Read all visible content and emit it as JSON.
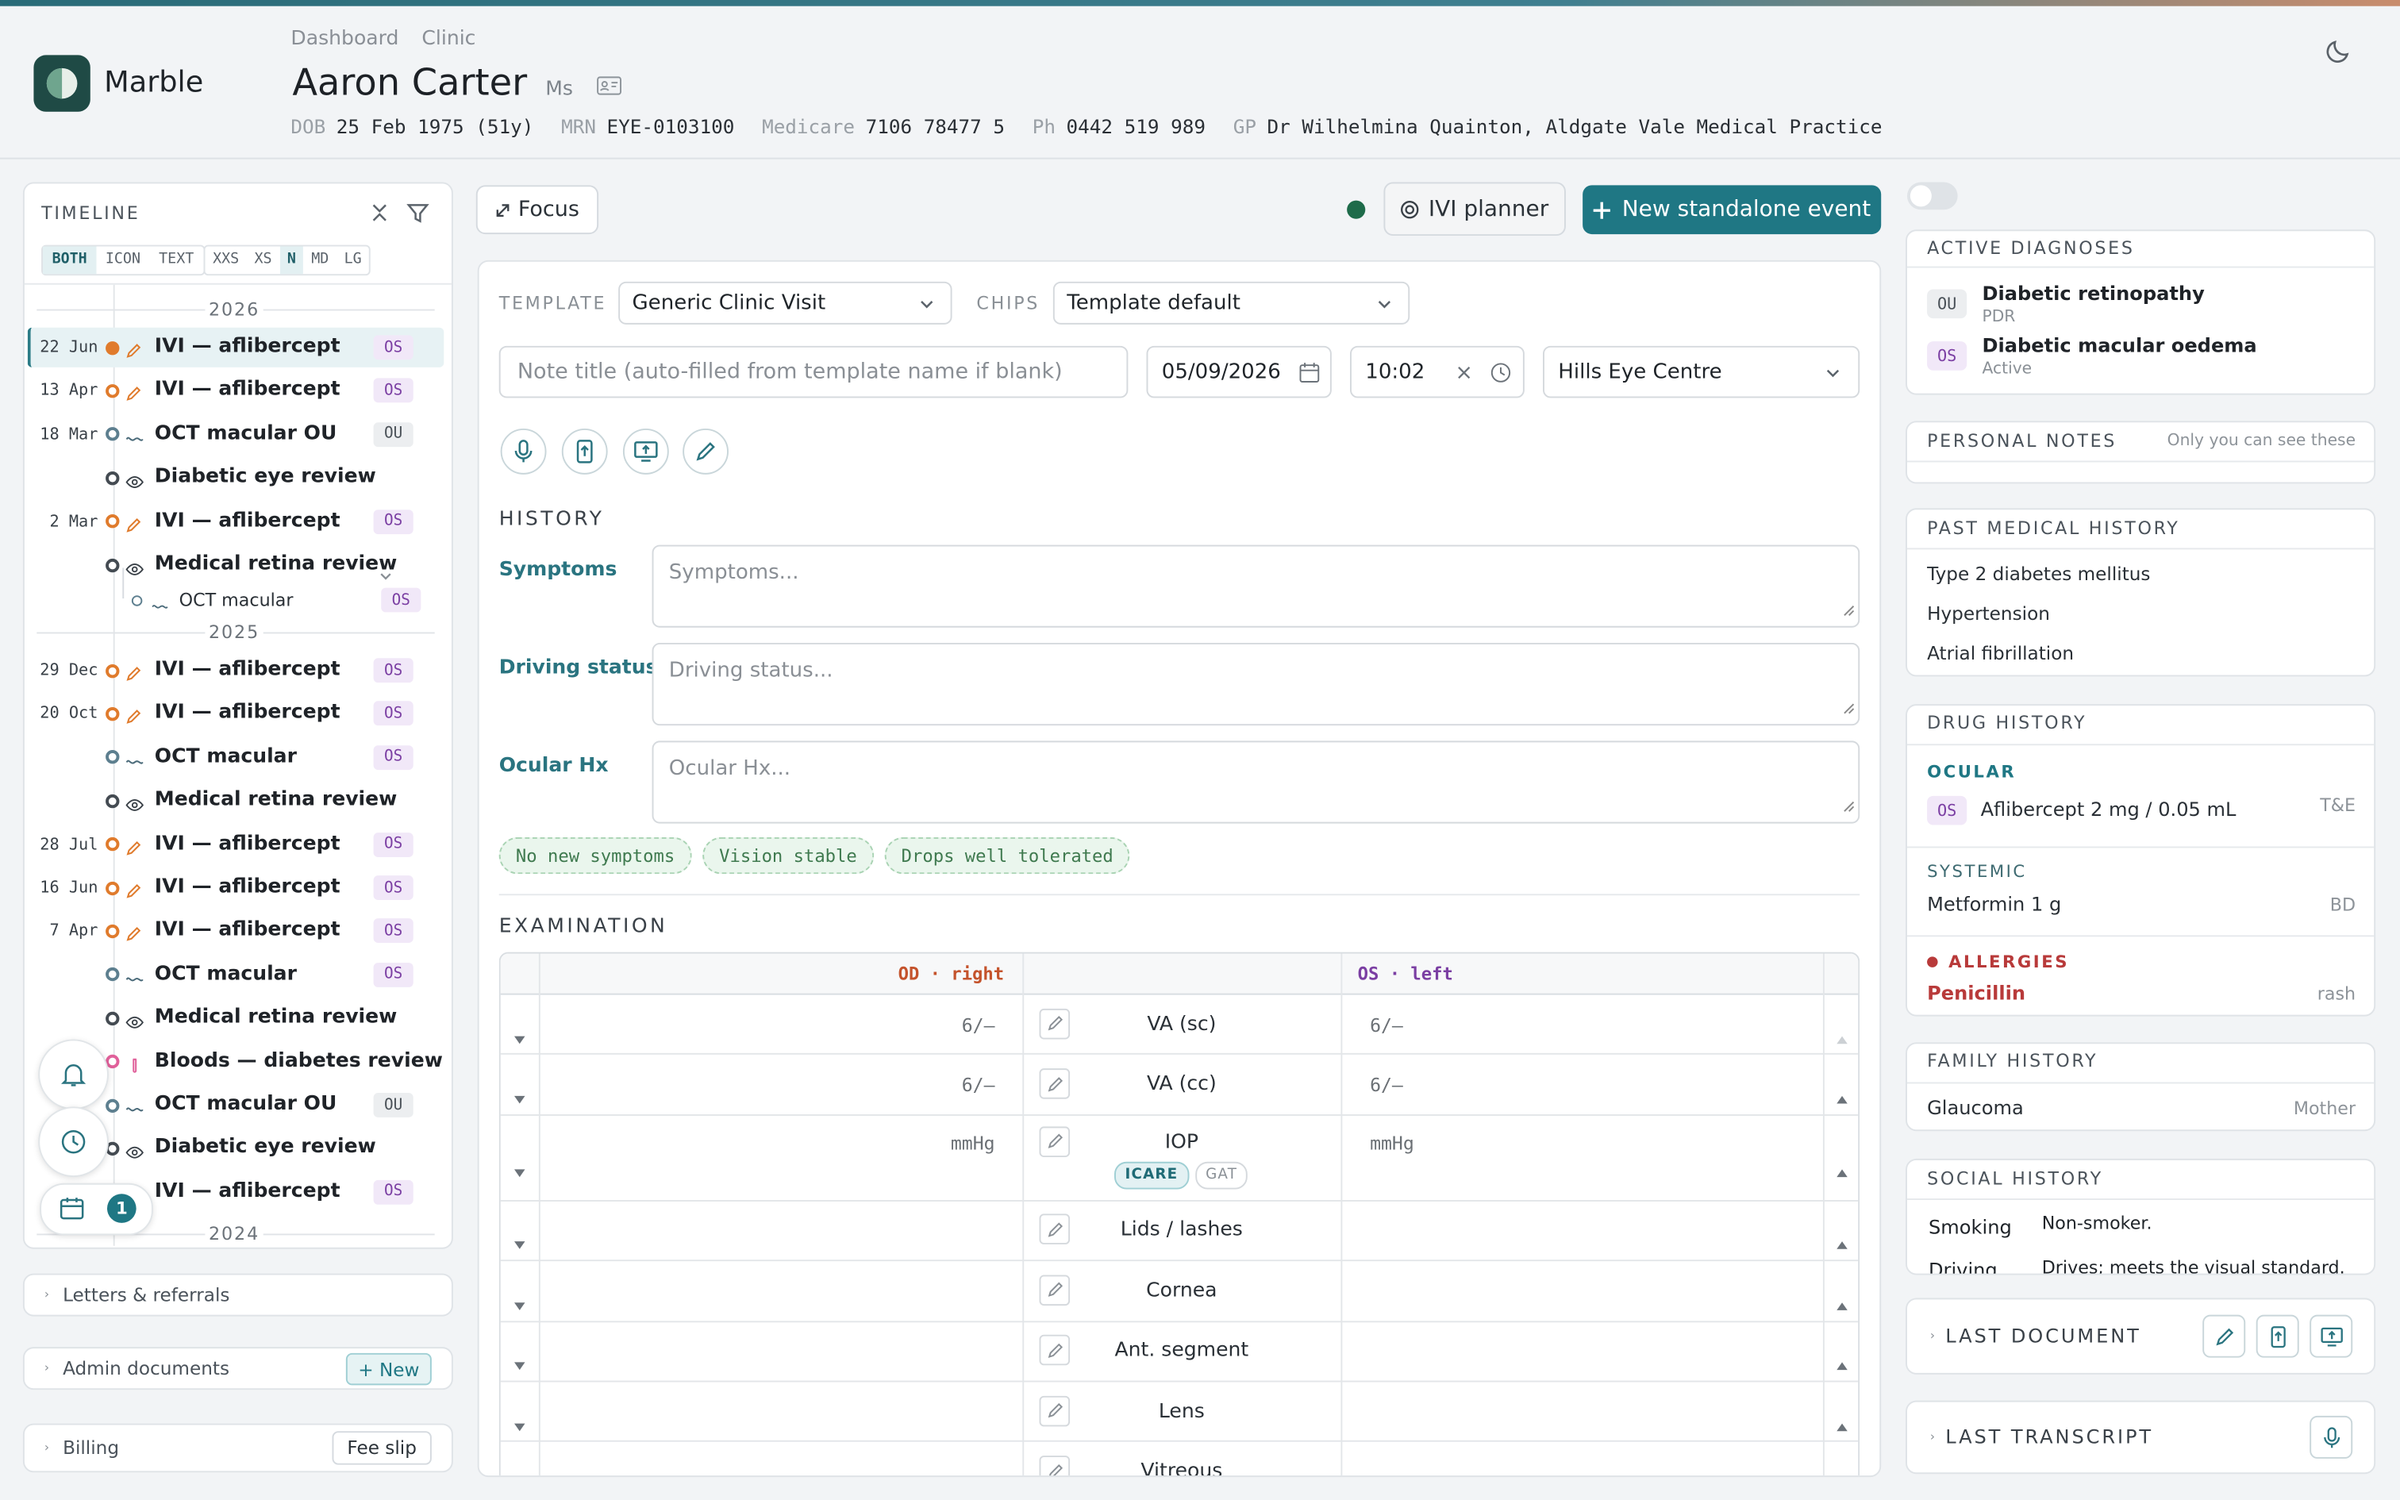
{
  "eye_badge_styles": {
    "OS": {
      "bg": "#f1e8f8",
      "color": "#7b3fa3"
    },
    "OU": {
      "bg": "#eceef0",
      "color": "#4a5158"
    }
  },
  "header": {
    "brand": "Marble",
    "breadcrumb": [
      "Dashboard",
      "Clinic"
    ],
    "patient": {
      "name": "Aaron Carter",
      "title": "Ms",
      "demographics": [
        {
          "label": "DOB",
          "value": "25 Feb 1975 (51y)"
        },
        {
          "label": "MRN",
          "value": "EYE-0103100"
        },
        {
          "label": "Medicare",
          "value": "7106 78477 5"
        },
        {
          "label": "Ph",
          "value": "0442 519 989"
        },
        {
          "label": "GP",
          "value": "Dr Wilhelmina Quainton, Aldgate Vale Medical Practice"
        }
      ]
    }
  },
  "timeline": {
    "title": "TIMELINE",
    "view_modes": [
      "BOTH",
      "ICON",
      "TEXT"
    ],
    "active_view_mode": 0,
    "sizes": [
      "XXS",
      "XS",
      "N",
      "MD",
      "LG"
    ],
    "active_size": 2,
    "groups": [
      {
        "year": "2026",
        "events": [
          {
            "date": "22 Jun",
            "icon": "injection",
            "label": "IVI — aflibercept",
            "eye": "OS",
            "selected": true
          },
          {
            "date": "13 Apr",
            "icon": "injection",
            "label": "IVI — aflibercept",
            "eye": "OS"
          },
          {
            "date": "18 Mar",
            "icon": "scan",
            "label": "OCT macular OU",
            "eye": "OU"
          },
          {
            "icon": "eye",
            "label": "Diabetic eye review"
          },
          {
            "date": "2 Mar",
            "icon": "injection",
            "label": "IVI — aflibercept",
            "eye": "OS"
          },
          {
            "icon": "eye",
            "label": "Medical retina review",
            "children": [
              {
                "icon": "scan",
                "label": "OCT macular",
                "eye": "OS"
              }
            ]
          }
        ]
      },
      {
        "year": "2025",
        "events": [
          {
            "date": "29 Dec",
            "icon": "injection",
            "label": "IVI — aflibercept",
            "eye": "OS"
          },
          {
            "date": "20 Oct",
            "icon": "injection",
            "label": "IVI — aflibercept",
            "eye": "OS"
          },
          {
            "icon": "scan",
            "label": "OCT macular",
            "eye": "OS"
          },
          {
            "icon": "eye",
            "label": "Medical retina review"
          },
          {
            "date": "28 Jul",
            "icon": "injection",
            "label": "IVI — aflibercept",
            "eye": "OS"
          },
          {
            "date": "16 Jun",
            "icon": "injection",
            "label": "IVI — aflibercept",
            "eye": "OS"
          },
          {
            "date": "7 Apr",
            "icon": "injection",
            "label": "IVI — aflibercept",
            "eye": "OS"
          },
          {
            "icon": "scan",
            "label": "OCT macular",
            "eye": "OS"
          },
          {
            "icon": "eye",
            "label": "Medical retina review"
          },
          {
            "icon": "blood",
            "label": "Bloods — diabetes review"
          },
          {
            "icon": "scan",
            "label": "OCT macular OU",
            "eye": "OU"
          },
          {
            "icon": "eye",
            "label": "Diabetic eye review"
          },
          {
            "icon": "injection",
            "label": "IVI — aflibercept",
            "eye": "OS"
          }
        ]
      },
      {
        "year": "2024",
        "events": []
      }
    ],
    "calendar_badge": 1
  },
  "left_sections": {
    "letters": {
      "title": "Letters & referrals"
    },
    "admin": {
      "title": "Admin documents",
      "action": "+ New"
    },
    "billing": {
      "title": "Billing",
      "action": "Fee slip"
    }
  },
  "toolbar": {
    "focus": "Focus",
    "planner": "IVI planner",
    "new_event": "New standalone event"
  },
  "form": {
    "template_label": "TEMPLATE",
    "template": "Generic Clinic Visit",
    "chips_label": "CHIPS",
    "chips_mode": "Template default",
    "note_title_placeholder": "Note title (auto-filled from template name if blank)",
    "date": "05/09/2026",
    "time": "10:02",
    "location": "Hills Eye Centre",
    "history_title": "HISTORY",
    "history_fields": [
      {
        "label": "Symptoms",
        "placeholder": "Symptoms..."
      },
      {
        "label": "Driving status",
        "placeholder": "Driving status..."
      },
      {
        "label": "Ocular Hx",
        "placeholder": "Ocular Hx..."
      }
    ],
    "chips": [
      "No new symptoms",
      "Vision stable",
      "Drops well tolerated"
    ],
    "examination_title": "EXAMINATION",
    "examination": {
      "od_header": "OD · right",
      "os_header": "OS · left",
      "rows": [
        {
          "label": "VA (sc)",
          "od": "6/–",
          "os": "6/–"
        },
        {
          "label": "VA (cc)",
          "od": "6/–",
          "os": "6/–"
        },
        {
          "label": "IOP",
          "od": "mmHg",
          "os": "mmHg",
          "methods": [
            {
              "label": "ICARE",
              "active": true
            },
            {
              "label": "GAT"
            }
          ]
        },
        {
          "label": "Lids / lashes"
        },
        {
          "label": "Cornea"
        },
        {
          "label": "Ant. segment"
        },
        {
          "label": "Lens"
        },
        {
          "label": "Vitreous"
        }
      ]
    }
  },
  "right_panel": {
    "active_diagnoses": {
      "title": "ACTIVE DIAGNOSES",
      "items": [
        {
          "eye": "OU",
          "name": "Diabetic retinopathy",
          "status": "PDR"
        },
        {
          "eye": "OS",
          "name": "Diabetic macular oedema",
          "status": "Active"
        }
      ]
    },
    "personal_notes": {
      "title": "PERSONAL NOTES",
      "hint": "Only you can see these"
    },
    "past_medical_history": {
      "title": "PAST MEDICAL HISTORY",
      "items": [
        "Type 2 diabetes mellitus",
        "Hypertension",
        "Atrial fibrillation"
      ]
    },
    "drug_history": {
      "title": "DRUG HISTORY",
      "ocular": {
        "heading": "OCULAR",
        "items": [
          {
            "eye": "OS",
            "name": "Aflibercept 2 mg / 0.05 mL",
            "regimen": "T&E"
          }
        ]
      },
      "systemic": {
        "heading": "SYSTEMIC",
        "items": [
          {
            "name": "Metformin 1 g",
            "regimen": "BD"
          }
        ]
      },
      "allergies": {
        "heading": "ALLERGIES",
        "items": [
          {
            "name": "Penicillin",
            "reaction": "rash"
          }
        ]
      }
    },
    "family_history": {
      "title": "FAMILY HISTORY",
      "items": [
        {
          "condition": "Glaucoma",
          "relation": "Mother"
        }
      ]
    },
    "social_history": {
      "title": "SOCIAL HISTORY",
      "items": [
        {
          "label": "Smoking",
          "value": "Non-smoker."
        },
        {
          "label": "Driving",
          "value": "Drives; meets the visual standard."
        }
      ]
    },
    "last_document": {
      "title": "LAST DOCUMENT"
    },
    "last_transcript": {
      "title": "LAST TRANSCRIPT"
    }
  }
}
